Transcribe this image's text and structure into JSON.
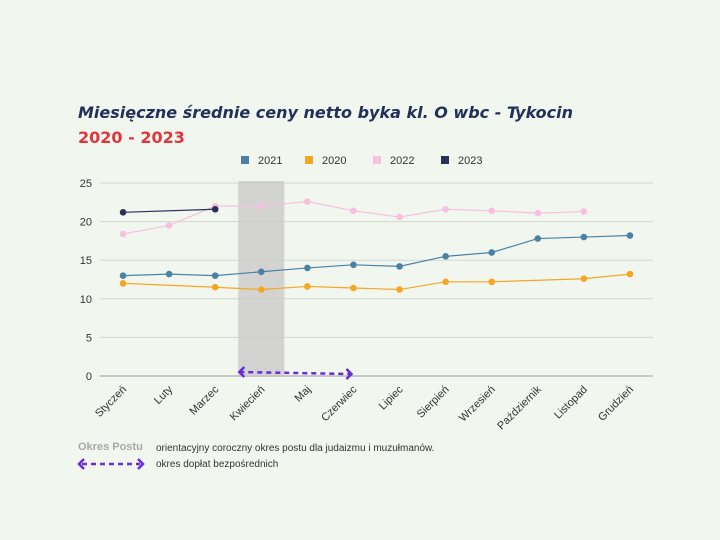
{
  "chart_data": {
    "type": "line",
    "title": "Miesięczne średnie ceny netto byka kl. O  wbc - Tykocin",
    "subtitle": "2020 - 2023",
    "categories": [
      "Styczeń",
      "Luty",
      "Marzec",
      "Kwiecień",
      "Maj",
      "Czerwiec",
      "Lipiec",
      "Sierpień",
      "Wrzesień",
      "Październik",
      "Listopad",
      "Grudzień"
    ],
    "ylim": [
      0,
      25
    ],
    "yticks": [
      0,
      5,
      10,
      15,
      20,
      25
    ],
    "grid": true,
    "legend_position": "top",
    "series": [
      {
        "name": "2021",
        "color": "#4a82a6",
        "values": [
          13.0,
          13.2,
          13.0,
          13.5,
          14.0,
          14.4,
          14.2,
          15.5,
          16.0,
          17.8,
          18.0,
          18.2
        ]
      },
      {
        "name": "2020",
        "color": "#f5a623",
        "values": [
          12.0,
          null,
          11.5,
          11.2,
          11.6,
          11.4,
          11.2,
          12.2,
          12.2,
          null,
          12.6,
          13.2
        ]
      },
      {
        "name": "2022",
        "color": "#f7c0df",
        "values": [
          18.4,
          19.5,
          22.0,
          22.0,
          22.6,
          21.4,
          20.6,
          21.6,
          21.4,
          21.1,
          21.3,
          null
        ]
      },
      {
        "name": "2023",
        "color": "#2b2f5c",
        "values": [
          21.2,
          null,
          21.6,
          null,
          null,
          null,
          null,
          null,
          null,
          null,
          null,
          null
        ]
      }
    ],
    "shaded_period": {
      "from": "Kwiecień",
      "label": "Okres Postu"
    },
    "arrow_period": {
      "from": "Kwiecień",
      "to": "Czerwiec"
    },
    "notes": {
      "fast_label": "Okres Postu",
      "fast_text": "orientacyjny coroczny okres postu dla judaizmu i muzułmanów.",
      "subsidy_text": "okres dopłat bezpośrednich"
    },
    "arrow_color": "#6a2bd9",
    "shade_color": "#c8c8c8"
  }
}
